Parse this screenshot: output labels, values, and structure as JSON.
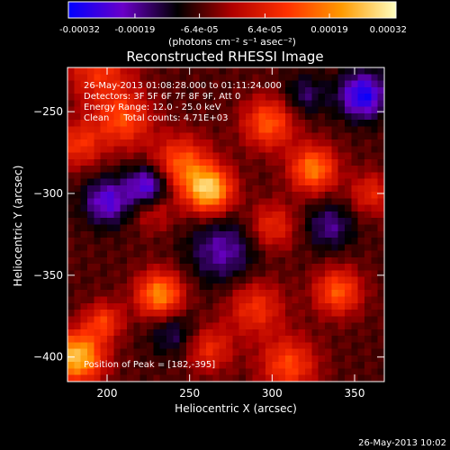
{
  "colorbar": {
    "ticks": [
      {
        "value": -0.00032,
        "label": "-0.00032"
      },
      {
        "value": -0.00019,
        "label": "-0.00019"
      },
      {
        "value": -6.4e-05,
        "label": "-6.4e-05"
      },
      {
        "value": 6.4e-05,
        "label": "6.4e-05"
      },
      {
        "value": 0.00019,
        "label": "0.00019"
      },
      {
        "value": 0.00032,
        "label": "0.00032"
      }
    ],
    "unit_label": "(photons cm⁻² s⁻¹ asec⁻²)",
    "range": [
      -0.00032,
      0.00032
    ],
    "colors": [
      "#0000ff",
      "#6a00c8",
      "#000000",
      "#b00000",
      "#ff3000",
      "#ff9a00",
      "#ffffc0"
    ]
  },
  "annotations": {
    "line1": "26-May-2013 01:08:28.000 to 01:11:24.000",
    "line2": "Detectors: 3F 5F 6F 7F 8F 9F, Att 0",
    "line3": "Energy Range: 12.0 - 25.0 keV",
    "line4": "Clean     Total counts: 4.71E+03",
    "peak": "Position of Peak = [182,-395]"
  },
  "footer": {
    "timestamp": "26-May-2013 10:02"
  },
  "chart_data": {
    "type": "heatmap",
    "title": "Reconstructed RHESSI Image",
    "xlabel": "Heliocentric X (arcsec)",
    "ylabel": "Heliocentric Y (arcsec)",
    "xlim": [
      176,
      368
    ],
    "ylim": [
      -415,
      -223
    ],
    "x_ticks": [
      200,
      250,
      300,
      350
    ],
    "y_ticks": [
      -250,
      -300,
      -350,
      -400
    ],
    "blobs": [
      {
        "x": 262,
        "y": -298,
        "amplitude": 0.00032,
        "sigma": 10
      },
      {
        "x": 245,
        "y": -282,
        "amplitude": 0.0002,
        "sigma": 12
      },
      {
        "x": 210,
        "y": -255,
        "amplitude": 0.00018,
        "sigma": 12
      },
      {
        "x": 298,
        "y": -257,
        "amplitude": 0.0002,
        "sigma": 11
      },
      {
        "x": 325,
        "y": -285,
        "amplitude": 0.00024,
        "sigma": 10
      },
      {
        "x": 183,
        "y": -270,
        "amplitude": 0.00015,
        "sigma": 10
      },
      {
        "x": 195,
        "y": -225,
        "amplitude": 0.00015,
        "sigma": 14
      },
      {
        "x": 300,
        "y": -320,
        "amplitude": 0.00014,
        "sigma": 10
      },
      {
        "x": 232,
        "y": -362,
        "amplitude": 0.00026,
        "sigma": 10
      },
      {
        "x": 182,
        "y": -400,
        "amplitude": 0.00032,
        "sigma": 11
      },
      {
        "x": 198,
        "y": -378,
        "amplitude": 0.00016,
        "sigma": 8
      },
      {
        "x": 290,
        "y": -370,
        "amplitude": 0.00015,
        "sigma": 12
      },
      {
        "x": 340,
        "y": -360,
        "amplitude": 0.0002,
        "sigma": 10
      },
      {
        "x": 310,
        "y": -405,
        "amplitude": 0.00018,
        "sigma": 12
      },
      {
        "x": 262,
        "y": -395,
        "amplitude": 0.00014,
        "sigma": 10
      },
      {
        "x": 360,
        "y": -300,
        "amplitude": 0.00013,
        "sigma": 9
      },
      {
        "x": 228,
        "y": -310,
        "amplitude": 0.0001,
        "sigma": 9
      },
      {
        "x": 355,
        "y": -240,
        "amplitude": -0.00024,
        "sigma": 10
      },
      {
        "x": 225,
        "y": -296,
        "amplitude": -0.00022,
        "sigma": 9
      },
      {
        "x": 200,
        "y": -305,
        "amplitude": -0.00018,
        "sigma": 10
      },
      {
        "x": 270,
        "y": -335,
        "amplitude": -0.00014,
        "sigma": 14
      },
      {
        "x": 335,
        "y": -320,
        "amplitude": -0.00012,
        "sigma": 10
      },
      {
        "x": 240,
        "y": -385,
        "amplitude": -0.0001,
        "sigma": 10
      },
      {
        "x": 320,
        "y": -240,
        "amplitude": -0.0001,
        "sigma": 9
      }
    ]
  }
}
